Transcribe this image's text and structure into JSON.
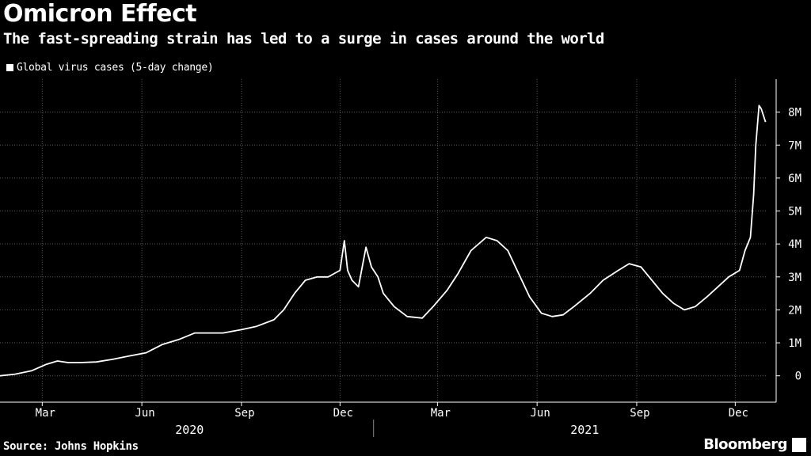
{
  "title": "Omicron Effect",
  "subtitle": "The fast-spreading strain has led to a surge in cases around the world",
  "source": "Source: Johns Hopkins",
  "brand": "Bloomberg",
  "colors": {
    "background": "#000000",
    "line": "#ffffff",
    "grid": "#555555"
  },
  "chart_data": {
    "type": "line",
    "title": "Omicron Effect",
    "subtitle": "The fast-spreading strain has led to a surge in cases around the world",
    "xlabel": "",
    "ylabel": "",
    "legend": "top-left",
    "grid": true,
    "ylim": [
      -800000,
      9000000
    ],
    "xlim": [
      "2020-01-22",
      "2021-12-30"
    ],
    "y_ticks": [
      {
        "value": 0,
        "label": "0"
      },
      {
        "value": 1000000,
        "label": "1M"
      },
      {
        "value": 2000000,
        "label": "2M"
      },
      {
        "value": 3000000,
        "label": "3M"
      },
      {
        "value": 4000000,
        "label": "4M"
      },
      {
        "value": 5000000,
        "label": "5M"
      },
      {
        "value": 6000000,
        "label": "6M"
      },
      {
        "value": 7000000,
        "label": "7M"
      },
      {
        "value": 8000000,
        "label": "8M"
      }
    ],
    "x_ticks": [
      {
        "date": "2020-03-01",
        "label": "Mar"
      },
      {
        "date": "2020-06-01",
        "label": "Jun"
      },
      {
        "date": "2020-09-01",
        "label": "Sep"
      },
      {
        "date": "2020-12-01",
        "label": "Dec"
      },
      {
        "date": "2021-03-01",
        "label": "Mar"
      },
      {
        "date": "2021-06-01",
        "label": "Jun"
      },
      {
        "date": "2021-09-01",
        "label": "Sep"
      },
      {
        "date": "2021-12-01",
        "label": "Dec"
      }
    ],
    "year_labels": [
      {
        "date": "2020-07-15",
        "label": "2020"
      },
      {
        "date": "2021-07-15",
        "label": "2021"
      }
    ],
    "year_divider": "2021-01-01",
    "series": [
      {
        "name": "Global virus cases (5-day change)",
        "x": [
          "2020-01-22",
          "2020-02-05",
          "2020-02-20",
          "2020-03-05",
          "2020-03-15",
          "2020-03-25",
          "2020-04-05",
          "2020-04-20",
          "2020-05-05",
          "2020-05-20",
          "2020-06-05",
          "2020-06-20",
          "2020-07-05",
          "2020-07-20",
          "2020-08-01",
          "2020-08-15",
          "2020-09-01",
          "2020-09-15",
          "2020-10-01",
          "2020-10-10",
          "2020-10-20",
          "2020-10-30",
          "2020-11-10",
          "2020-11-20",
          "2020-12-01",
          "2020-12-05",
          "2020-12-08",
          "2020-12-12",
          "2020-12-18",
          "2020-12-25",
          "2020-12-30",
          "2021-01-05",
          "2021-01-10",
          "2021-01-20",
          "2021-02-01",
          "2021-02-15",
          "2021-02-25",
          "2021-03-10",
          "2021-03-20",
          "2021-04-01",
          "2021-04-15",
          "2021-04-25",
          "2021-05-05",
          "2021-05-15",
          "2021-05-25",
          "2021-06-05",
          "2021-06-15",
          "2021-06-25",
          "2021-07-05",
          "2021-07-20",
          "2021-08-01",
          "2021-08-15",
          "2021-08-25",
          "2021-09-05",
          "2021-09-15",
          "2021-09-25",
          "2021-10-05",
          "2021-10-15",
          "2021-10-25",
          "2021-11-05",
          "2021-11-15",
          "2021-11-25",
          "2021-12-05",
          "2021-12-10",
          "2021-12-15",
          "2021-12-18",
          "2021-12-20",
          "2021-12-23",
          "2021-12-25",
          "2021-12-27",
          "2021-12-29"
        ],
        "values": [
          0,
          50000,
          150000,
          350000,
          450000,
          400000,
          400000,
          420000,
          500000,
          600000,
          700000,
          950000,
          1100000,
          1300000,
          1300000,
          1300000,
          1400000,
          1500000,
          1700000,
          2000000,
          2500000,
          2900000,
          3000000,
          3000000,
          3200000,
          4100000,
          3200000,
          2900000,
          2700000,
          3900000,
          3300000,
          3000000,
          2500000,
          2100000,
          1800000,
          1750000,
          2100000,
          2600000,
          3100000,
          3800000,
          4200000,
          4100000,
          3800000,
          3100000,
          2400000,
          1900000,
          1800000,
          1850000,
          2100000,
          2500000,
          2900000,
          3200000,
          3400000,
          3300000,
          2900000,
          2500000,
          2200000,
          2000000,
          2100000,
          2400000,
          2700000,
          3000000,
          3200000,
          3800000,
          4200000,
          5500000,
          7000000,
          8200000,
          8100000,
          7900000,
          7700000
        ]
      }
    ]
  }
}
